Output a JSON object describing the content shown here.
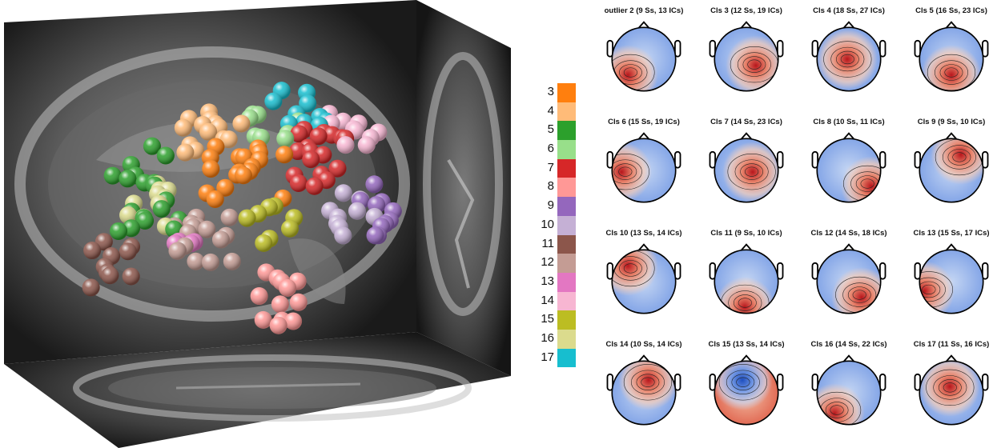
{
  "legend": {
    "items": [
      {
        "label": "3",
        "color": "#ff7f0e"
      },
      {
        "label": "4",
        "color": "#ffbb78"
      },
      {
        "label": "5",
        "color": "#2ca02c"
      },
      {
        "label": "6",
        "color": "#98df8a"
      },
      {
        "label": "7",
        "color": "#d62728"
      },
      {
        "label": "8",
        "color": "#ff9896"
      },
      {
        "label": "9",
        "color": "#9467bd"
      },
      {
        "label": "10",
        "color": "#c5b0d5"
      },
      {
        "label": "11",
        "color": "#8c564b"
      },
      {
        "label": "12",
        "color": "#c49c94"
      },
      {
        "label": "13",
        "color": "#e377c2"
      },
      {
        "label": "14",
        "color": "#f7b6d2"
      },
      {
        "label": "15",
        "color": "#bcbd22"
      },
      {
        "label": "16",
        "color": "#dbdb8d"
      },
      {
        "label": "17",
        "color": "#17becf"
      }
    ]
  },
  "scalp_maps": [
    {
      "title": "outlier 2 (9 Ss, 13 ICs)",
      "icon": "scalp-map-icon"
    },
    {
      "title": "Cls 3 (12 Ss, 19 ICs)",
      "icon": "scalp-map-icon"
    },
    {
      "title": "Cls 4 (18 Ss, 27 ICs)",
      "icon": "scalp-map-icon"
    },
    {
      "title": "Cls 5 (16 Ss, 23 ICs)",
      "icon": "scalp-map-icon"
    },
    {
      "title": "Cls 6 (15 Ss, 19 ICs)",
      "icon": "scalp-map-icon"
    },
    {
      "title": "Cls 7 (14 Ss, 23 ICs)",
      "icon": "scalp-map-icon"
    },
    {
      "title": "Cls 8 (10 Ss, 11 ICs)",
      "icon": "scalp-map-icon"
    },
    {
      "title": "Cls 9 (9 Ss, 10 ICs)",
      "icon": "scalp-map-icon"
    },
    {
      "title": "Cls 10 (13 Ss, 14 ICs)",
      "icon": "scalp-map-icon"
    },
    {
      "title": "Cls 11 (9 Ss, 10 ICs)",
      "icon": "scalp-map-icon"
    },
    {
      "title": "Cls 12 (14 Ss, 18 ICs)",
      "icon": "scalp-map-icon"
    },
    {
      "title": "Cls 13 (15 Ss, 17 ICs)",
      "icon": "scalp-map-icon"
    },
    {
      "title": "Cls 14 (10 Ss, 14 ICs)",
      "icon": "scalp-map-icon"
    },
    {
      "title": "Cls 15 (13 Ss, 14 ICs)",
      "icon": "scalp-map-icon"
    },
    {
      "title": "Cls 16 (14 Ss, 22 ICs)",
      "icon": "scalp-map-icon"
    },
    {
      "title": "Cls 17 (11 Ss, 16 ICs)",
      "icon": "scalp-map-icon"
    }
  ],
  "brain": {
    "icon": "brain-mri-3d-icon"
  }
}
